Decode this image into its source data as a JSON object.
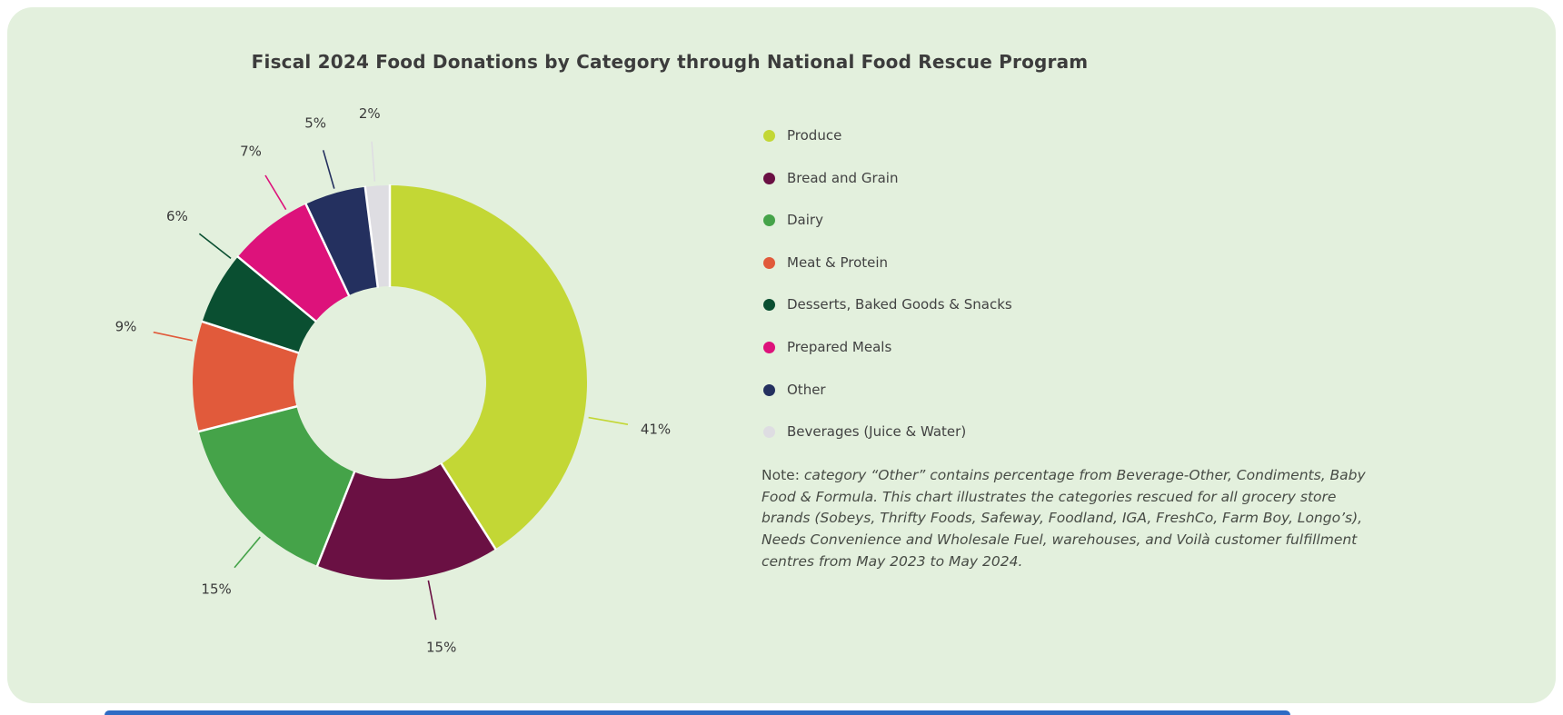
{
  "page": {
    "background": "#ffffff",
    "panel_background": "#e3f0dd",
    "next_section_color": "#2e6bc4"
  },
  "header": {
    "title": "Fiscal 2024 Food Donations by Category through National Food Rescue Program"
  },
  "chart_data": {
    "type": "pie",
    "donut": true,
    "title": "Fiscal 2024 Food Donations by Category through National Food Rescue Program",
    "value_suffix": "%",
    "start_angle_deg": 0,
    "direction": "clockwise",
    "inner_radius_ratio": 0.49,
    "legend_position": "right",
    "slices": [
      {
        "label": "Produce",
        "value": 41,
        "color": "#c3d735",
        "label_angle": 100
      },
      {
        "label": "Bread and Grain",
        "value": 15,
        "color": "#6a1043",
        "label_angle": 169
      },
      {
        "label": "Dairy",
        "value": 15,
        "color": "#45a349",
        "label_angle": 220
      },
      {
        "label": "Meat & Protein",
        "value": 9,
        "color": "#e15a3b",
        "label_angle": 282
      },
      {
        "label": "Desserts, Baked Goods & Snacks",
        "value": 6,
        "color": "#0a4f31",
        "label_angle": 308
      },
      {
        "label": "Prepared Meals",
        "value": 7,
        "color": "#dd127b",
        "label_angle": 329
      },
      {
        "label": "Other",
        "value": 5,
        "color": "#24305f",
        "label_angle": 344
      },
      {
        "label": "Beverages (Juice & Water)",
        "value": 2,
        "color": "#dedde2",
        "label_angle": 355.7
      }
    ]
  },
  "note": {
    "prefix": "Note: ",
    "body": "category “Other” contains percentage from Beverage-Other, Condiments, Baby Food & Formula. This chart illustrates the categories rescued for all grocery store brands (Sobeys, Thrifty Foods, Safeway, Foodland, IGA, FreshCo, Farm Boy, Longo’s), Needs Convenience and Wholesale Fuel, warehouses, and Voilà customer fulfillment centres from May 2023 to May 2024."
  }
}
